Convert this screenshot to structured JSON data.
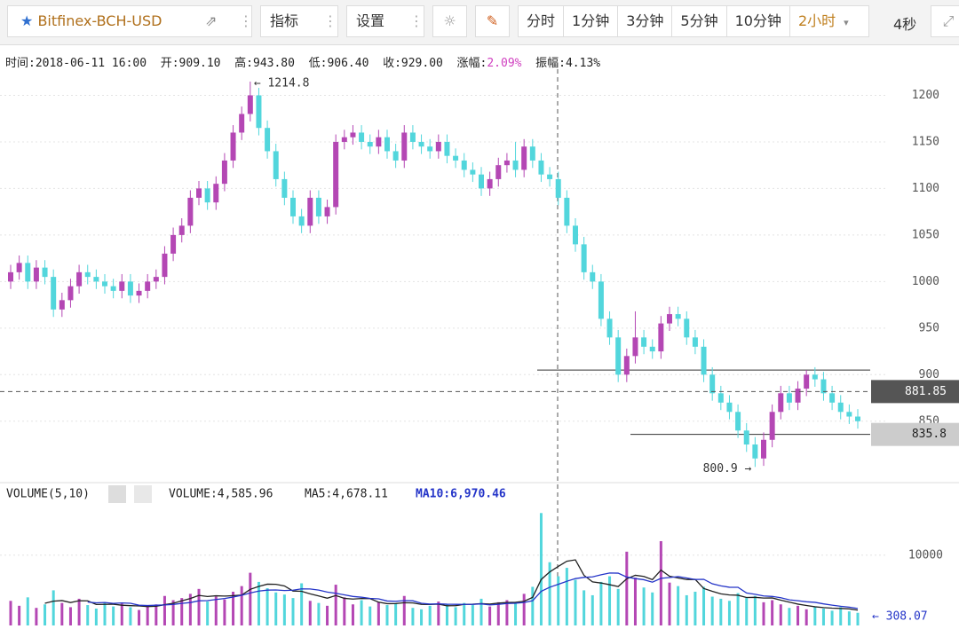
{
  "toolbar": {
    "title": "Bitfinex-BCH-USD",
    "indicator": "指标",
    "settings": "设置",
    "periods": [
      "分时",
      "1分钟",
      "3分钟",
      "5分钟",
      "10分钟",
      "2小时"
    ],
    "timer": "4秒"
  },
  "info": [
    "时间:2018-06-11 16:00",
    "开:909.10",
    "高:943.80",
    "低:906.40",
    "收:929.00",
    "涨幅:",
    "2.09%",
    "振幅:4.13%"
  ],
  "chart_data": [
    {
      "type": "candlestick",
      "up_color": "#b447b4",
      "down_color": "#52d6dc",
      "ylim": [
        785,
        1250
      ],
      "yticks": [
        850,
        900,
        950,
        1000,
        1050,
        1100,
        1150,
        1200
      ],
      "grid": true,
      "hlines": [
        905,
        835.8
      ],
      "crosshair": 881.85,
      "last_price": 835.8,
      "annotations": [
        "← 1214.8",
        "800.9 →"
      ],
      "open": [
        1000,
        1010,
        1020,
        1000,
        1015,
        1005,
        970,
        980,
        995,
        1010,
        1005,
        1000,
        995,
        990,
        1000,
        985,
        990,
        1000,
        1005,
        1030,
        1050,
        1060,
        1090,
        1100,
        1085,
        1105,
        1130,
        1160,
        1180,
        1200,
        1165,
        1140,
        1110,
        1090,
        1070,
        1060,
        1090,
        1070,
        1080,
        1150,
        1155,
        1160,
        1150,
        1145,
        1155,
        1140,
        1130,
        1160,
        1150,
        1145,
        1140,
        1150,
        1135,
        1130,
        1120,
        1115,
        1100,
        1110,
        1125,
        1130,
        1120,
        1145,
        1130,
        1115,
        1110,
        1090,
        1060,
        1040,
        1010,
        1000,
        960,
        940,
        900,
        920,
        940,
        930,
        925,
        955,
        965,
        960,
        940,
        930,
        900,
        880,
        870,
        860,
        840,
        825,
        810,
        830,
        860,
        880,
        870,
        885,
        900,
        895,
        880,
        870,
        860,
        855
      ],
      "high": [
        1018,
        1028,
        1028,
        1023,
        1023,
        1013,
        988,
        1003,
        1018,
        1018,
        1013,
        1008,
        1003,
        1008,
        1008,
        998,
        1008,
        1013,
        1038,
        1058,
        1068,
        1098,
        1108,
        1108,
        1113,
        1138,
        1168,
        1188,
        1214.8,
        1208,
        1173,
        1148,
        1118,
        1098,
        1078,
        1098,
        1098,
        1088,
        1158,
        1163,
        1168,
        1168,
        1158,
        1163,
        1163,
        1148,
        1168,
        1168,
        1158,
        1153,
        1158,
        1158,
        1143,
        1138,
        1128,
        1123,
        1118,
        1133,
        1138,
        1150,
        1153,
        1153,
        1138,
        1123,
        1118,
        1098,
        1068,
        1048,
        1018,
        1008,
        968,
        948,
        928,
        968,
        948,
        938,
        963,
        973,
        973,
        968,
        948,
        938,
        908,
        888,
        878,
        868,
        848,
        833,
        838,
        868,
        888,
        888,
        893,
        905,
        908,
        903,
        888,
        878,
        868,
        863
      ],
      "low": [
        992,
        1002,
        992,
        992,
        997,
        962,
        962,
        972,
        987,
        997,
        992,
        987,
        982,
        982,
        977,
        977,
        982,
        992,
        997,
        1022,
        1042,
        1052,
        1082,
        1077,
        1077,
        1097,
        1122,
        1152,
        1172,
        1157,
        1132,
        1102,
        1082,
        1062,
        1052,
        1052,
        1062,
        1062,
        1072,
        1142,
        1147,
        1142,
        1137,
        1137,
        1132,
        1122,
        1122,
        1142,
        1137,
        1132,
        1132,
        1127,
        1122,
        1112,
        1107,
        1092,
        1092,
        1102,
        1117,
        1112,
        1112,
        1122,
        1107,
        1102,
        1082,
        1052,
        1032,
        1002,
        992,
        952,
        932,
        892,
        892,
        912,
        922,
        917,
        917,
        947,
        952,
        932,
        922,
        892,
        872,
        862,
        852,
        832,
        817,
        800.9,
        802,
        822,
        852,
        862,
        862,
        877,
        887,
        872,
        862,
        852,
        847,
        842
      ],
      "close": [
        1010,
        1020,
        1000,
        1015,
        1005,
        970,
        980,
        995,
        1010,
        1005,
        1000,
        995,
        990,
        1000,
        985,
        990,
        1000,
        1005,
        1030,
        1050,
        1060,
        1090,
        1100,
        1085,
        1105,
        1130,
        1160,
        1180,
        1200,
        1165,
        1140,
        1110,
        1090,
        1070,
        1060,
        1090,
        1070,
        1080,
        1150,
        1155,
        1160,
        1150,
        1145,
        1155,
        1140,
        1130,
        1160,
        1150,
        1145,
        1140,
        1150,
        1135,
        1130,
        1120,
        1115,
        1100,
        1110,
        1125,
        1130,
        1120,
        1145,
        1130,
        1115,
        1110,
        1090,
        1060,
        1040,
        1010,
        1000,
        960,
        940,
        900,
        920,
        940,
        930,
        925,
        955,
        965,
        960,
        940,
        930,
        900,
        880,
        870,
        860,
        840,
        825,
        810,
        830,
        860,
        880,
        870,
        885,
        900,
        895,
        880,
        870,
        860,
        855,
        850
      ]
    },
    {
      "type": "bar",
      "title": "VOLUME(5,10)",
      "value_text": "VOLUME:4,585.96",
      "last_label": "← 308.07",
      "ylim": [
        0,
        17300
      ],
      "yticks": [
        10000
      ],
      "values": [
        3500,
        2800,
        4000,
        2500,
        3000,
        5000,
        3200,
        2600,
        3800,
        2900,
        2400,
        3300,
        2700,
        3100,
        2600,
        2200,
        2800,
        3000,
        4200,
        3600,
        3900,
        4500,
        5200,
        3400,
        4100,
        3700,
        4800,
        5600,
        7500,
        6200,
        5300,
        4700,
        4400,
        3900,
        6000,
        3500,
        3200,
        2800,
        5800,
        4000,
        3000,
        3600,
        2700,
        3300,
        2900,
        3100,
        4200,
        2500,
        2300,
        2800,
        3400,
        3000,
        2600,
        3200,
        2900,
        3800,
        2700,
        3300,
        3600,
        3100,
        4500,
        5500,
        16000,
        9000,
        7000,
        8200,
        6500,
        5000,
        4300,
        6200,
        7000,
        5200,
        10500,
        6800,
        5400,
        4700,
        12000,
        6100,
        5600,
        4300,
        4800,
        5500,
        4100,
        3800,
        3500,
        4600,
        3900,
        4200,
        3300,
        3600,
        3000,
        2500,
        2800,
        2300,
        2700,
        2400,
        2100,
        2600,
        2000,
        1800
      ],
      "series": [
        {
          "name": "MA5:4,678.11",
          "color": "#222222",
          "values": [
            null,
            null,
            null,
            null,
            3160,
            3460,
            3540,
            3260,
            3520,
            3500,
            2980,
            3000,
            3020,
            2880,
            2820,
            2780,
            2680,
            2740,
            2960,
            3160,
            3500,
            3840,
            4280,
            4120,
            4220,
            4180,
            4240,
            4320,
            5140,
            5560,
            5880,
            5860,
            5620,
            4900,
            4860,
            4500,
            4200,
            3880,
            4260,
            3860,
            3760,
            3840,
            3820,
            3320,
            3100,
            3120,
            3240,
            3200,
            3000,
            2980,
            3040,
            2800,
            2820,
            3000,
            3020,
            3100,
            3040,
            3180,
            3260,
            3300,
            3440,
            4000,
            6540,
            7620,
            8400,
            9140,
            9340,
            7140,
            6200,
            6040,
            5800,
            5540,
            6640,
            7140,
            6980,
            6520,
            7880,
            7000,
            6760,
            6540,
            6560,
            5260,
            4860,
            4500,
            4340,
            4300,
            3980,
            4000,
            3900,
            3920,
            3600,
            3320,
            3040,
            2840,
            2660,
            2540,
            2460,
            2420,
            2360,
            2180
          ]
        },
        {
          "name": "MA10:6,970.46",
          "color": "#2434c8",
          "values": [
            null,
            null,
            null,
            null,
            null,
            null,
            null,
            null,
            null,
            3330,
            3220,
            3270,
            3140,
            3200,
            3160,
            2880,
            2840,
            2880,
            2920,
            2990,
            3140,
            3260,
            3510,
            3540,
            3690,
            3840,
            4040,
            4300,
            4630,
            4890,
            5030,
            5050,
            4970,
            5020,
            5210,
            5190,
            5030,
            4750,
            4580,
            4360,
            4130,
            4020,
            3850,
            3790,
            3480,
            3440,
            3540,
            3510,
            3160,
            3040,
            3080,
            3020,
            3010,
            3000,
            3000,
            3070,
            2920,
            3000,
            3130,
            3160,
            3270,
            3520,
            4860,
            5440,
            5850,
            6290,
            6670,
            6840,
            6910,
            7220,
            7470,
            7440,
            6890,
            6670,
            6510,
            6160,
            6710,
            6820,
            6950,
            6760,
            6540,
            6570,
            5930,
            5630,
            5440,
            5430,
            4620,
            4430,
            4200,
            4130,
            3950,
            3650,
            3520,
            3370,
            3290,
            3070,
            2890,
            2730,
            2600,
            2420
          ]
        }
      ]
    }
  ]
}
